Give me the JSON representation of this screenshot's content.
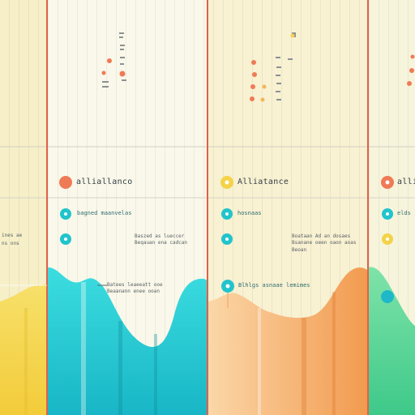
{
  "texts": {
    "panel_2_title": "alliallanco",
    "panel_2_subtitle": "bagned maanvelas",
    "panel_2_note_top": "Baszed as lueccer",
    "panel_2_note_bottom": "Beqauan ena cadcan",
    "panel_2_wave_note_top": "Batees leaeeatt ooe",
    "panel_2_wave_note_bottom": "Beaanann enee ooan",
    "panel_1_note_top": "ines ae",
    "panel_1_note_bottom": "ns ons",
    "panel_3_title": "Alliatance",
    "panel_3_subtitle": "hosnaas",
    "panel_3_note_top": "Boataan Ad an dosaes",
    "panel_3_note_mid": "Bsanane oeen oaon aoas",
    "panel_3_note_bottom": "Beoan",
    "panel_3_wave_label": "Blhlgs asnaae lemimes",
    "panel_4_title": "alli",
    "panel_4_subtitle": "elds"
  },
  "colors": {
    "background": "#f7f3d9",
    "panel_light": "#faf8ea",
    "divider_red": "#e0604a",
    "teal": "#22c4cc",
    "orange": "#f2a35e",
    "yellow": "#f4d34a",
    "green": "#5fd6a0",
    "coral": "#ee7b55"
  },
  "icons": [
    "orange-dot-icon",
    "teal-dot-icon",
    "yellow-dot-icon",
    "bullet-dot-icon"
  ]
}
